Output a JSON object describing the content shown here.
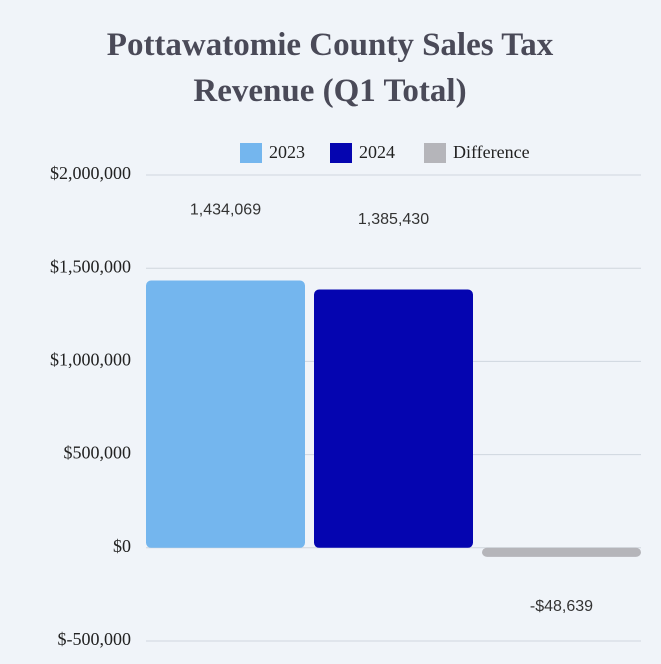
{
  "chart_data": {
    "type": "bar",
    "title": "Pottawatomie County Sales Tax Revenue (Q1 Total)",
    "categories": [
      null
    ],
    "series": [
      {
        "name": "2023",
        "color": "#74b6ee",
        "values": [
          1434069
        ],
        "value_labels": [
          "1,434,069"
        ]
      },
      {
        "name": "2024",
        "color": "#0505b0",
        "values": [
          1385430
        ],
        "value_labels": [
          "1,385,430"
        ]
      },
      {
        "name": "Difference",
        "color": "#b5b5ba",
        "values": [
          -48639
        ],
        "value_labels": [
          "-$48,639"
        ]
      }
    ],
    "ylim": [
      -500000,
      2000000
    ],
    "yticks": [
      {
        "value": -500000,
        "label": "$-500,000"
      },
      {
        "value": 0,
        "label": "$0"
      },
      {
        "value": 500000,
        "label": "$500,000"
      },
      {
        "value": 1000000,
        "label": "$1,000,000"
      },
      {
        "value": 1500000,
        "label": "$1,500,000"
      },
      {
        "value": 2000000,
        "label": "$2,000,000"
      }
    ],
    "grid": true,
    "legend": "top"
  }
}
